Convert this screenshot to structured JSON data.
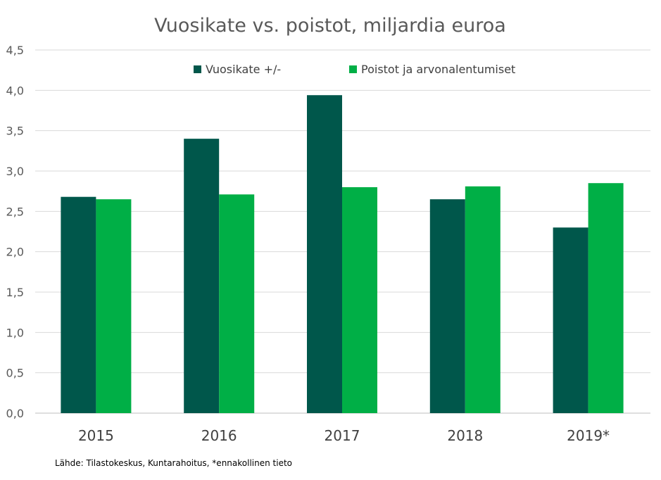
{
  "chart_data": {
    "type": "bar",
    "title": "Vuosikate vs. poistot, miljardia euroa",
    "categories": [
      "2015",
      "2016",
      "2017",
      "2018",
      "2019*"
    ],
    "series": [
      {
        "name": "Vuosikate +/-",
        "color": "#00574B",
        "values": [
          2.68,
          3.4,
          3.94,
          2.65,
          2.3
        ]
      },
      {
        "name": "Poistot ja arvonalentumiset",
        "color": "#00AF46",
        "values": [
          2.65,
          2.71,
          2.8,
          2.81,
          2.85
        ]
      }
    ],
    "ylim": [
      0,
      4.5
    ],
    "yticks": [
      "0,0",
      "0,5",
      "1,0",
      "1,5",
      "2,0",
      "2,5",
      "3,0",
      "3,5",
      "4,0",
      "4,5"
    ],
    "grid": true,
    "legend_position": "top"
  },
  "source_note": "Lähde: Tilastokeskus, Kuntarahoitus, *ennakollinen tieto"
}
